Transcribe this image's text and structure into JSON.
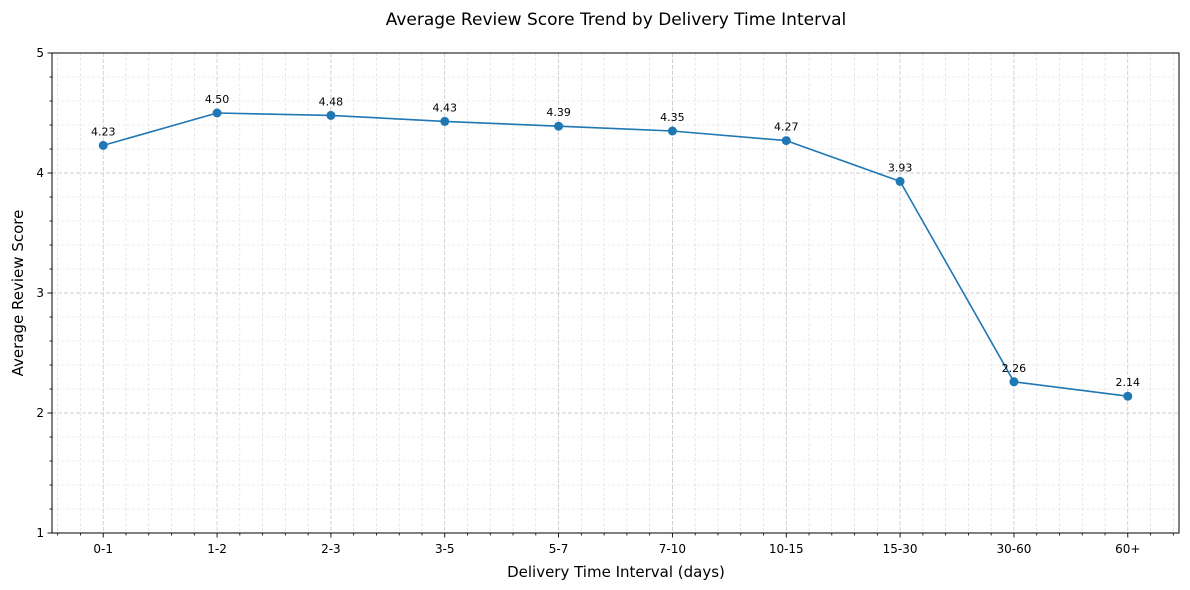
{
  "chart_data": {
    "type": "line",
    "title": "Average Review Score Trend by Delivery Time Interval",
    "xlabel": "Delivery Time Interval (days)",
    "ylabel": "Average Review Score",
    "categories": [
      "0-1",
      "1-2",
      "2-3",
      "3-5",
      "5-7",
      "7-10",
      "10-15",
      "15-30",
      "30-60",
      "60+"
    ],
    "series": [
      {
        "values": [
          4.23,
          4.5,
          4.48,
          4.43,
          4.39,
          4.35,
          4.27,
          3.93,
          2.26,
          2.14
        ],
        "labels": [
          "4.23",
          "4.50",
          "4.48",
          "4.43",
          "4.39",
          "4.35",
          "4.27",
          "3.93",
          "2.26",
          "2.14"
        ],
        "color": "#1f77b4",
        "marker": "circle"
      }
    ],
    "ylim": [
      1,
      5
    ],
    "yticks": [
      1,
      2,
      3,
      4,
      5
    ],
    "grid": "major-and-minor-dashed",
    "legend": "none"
  }
}
